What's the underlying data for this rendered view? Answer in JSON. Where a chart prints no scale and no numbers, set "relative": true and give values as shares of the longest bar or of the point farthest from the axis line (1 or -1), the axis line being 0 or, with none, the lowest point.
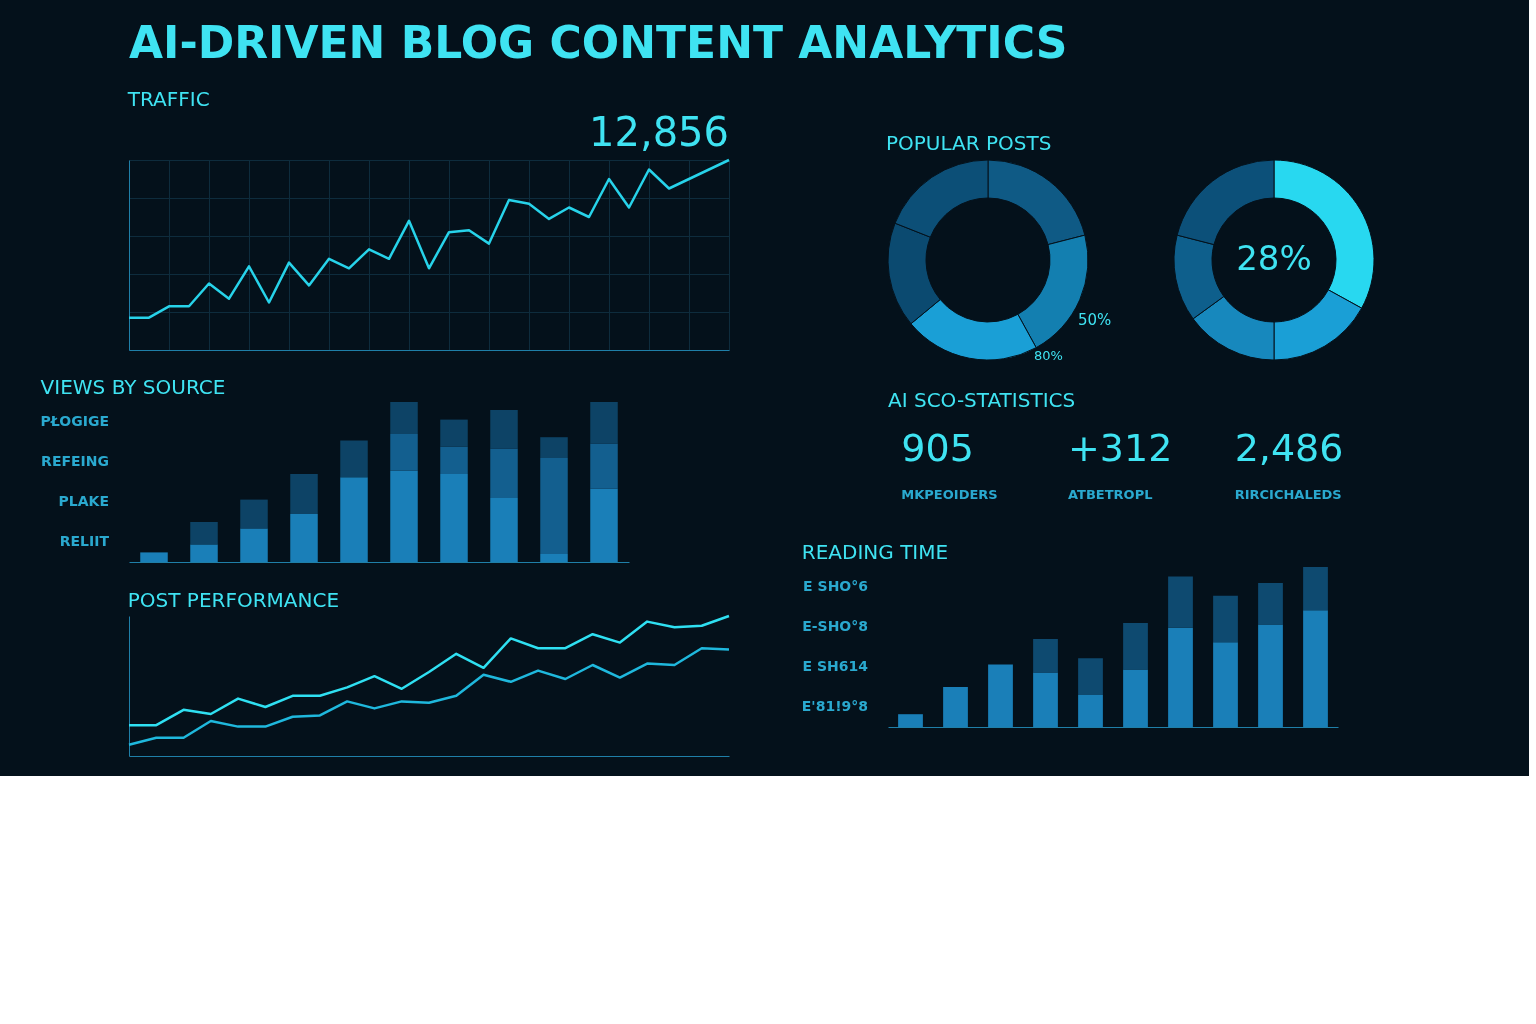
{
  "chart_data": [
    {
      "type": "other",
      "title": "AI-DRIVEN BLOG CONTENT ANALYTICS"
    },
    {
      "type": "line",
      "title": "TRAFFIC",
      "categories": [
        null,
        null,
        null,
        null,
        null,
        null,
        null,
        null,
        null,
        null,
        null,
        null,
        null,
        null,
        null,
        null,
        null,
        null,
        null,
        null,
        null,
        null,
        null,
        null,
        null,
        null,
        null,
        null,
        null,
        null,
        null
      ],
      "values": [
        0.17,
        0.17,
        0.23,
        0.23,
        0.35,
        0.27,
        0.44,
        0.25,
        0.46,
        0.34,
        0.48,
        0.43,
        0.53,
        0.48,
        0.68,
        0.43,
        0.62,
        0.63,
        0.56,
        0.79,
        0.77,
        0.69,
        0.75,
        0.7,
        0.9,
        0.75,
        0.95,
        0.85,
        0.9,
        0.95,
        1.0
      ],
      "color": "#27d3ea",
      "relative": true,
      "grid": true,
      "tick_labels": false,
      "annotations": [
        "12,856"
      ]
    },
    {
      "type": "donut",
      "title": "POPULAR POSTS",
      "categories": [
        null,
        null,
        null,
        null,
        null
      ],
      "values": [
        21,
        21,
        22,
        17,
        19
      ],
      "colors": [
        "#0f5a85",
        "#137fb0",
        "#1a9fd6",
        "#0b4a70",
        "#0c4f77"
      ],
      "annotations": [
        "50%",
        "80%"
      ]
    },
    {
      "type": "donut",
      "categories": [
        null,
        null,
        null,
        null,
        null
      ],
      "values": [
        33,
        17,
        15,
        14,
        21
      ],
      "colors": [
        "#28d8f0",
        "#1a9fd6",
        "#1788bd",
        "#0e5f8c",
        "#0c5079"
      ],
      "annotations": [
        "28%"
      ]
    },
    {
      "type": "bar",
      "title": "VIEWS BY SOURCE",
      "stacked": true,
      "relative": true,
      "tick_labels": false,
      "categories": [
        null,
        null,
        null,
        null,
        null,
        null,
        null,
        null,
        null,
        null
      ],
      "series": [
        {
          "color": "#1a7fb8",
          "values": [
            0.06,
            0.11,
            0.21,
            0.3,
            0.53,
            0.57,
            0.55,
            0.4,
            0.05,
            0.46
          ]
        },
        {
          "color": "#135f8f",
          "values": [
            null,
            null,
            null,
            null,
            null,
            0.23,
            0.17,
            0.31,
            0.6,
            0.28
          ]
        },
        {
          "color": "#0d4366",
          "values": [
            null,
            0.14,
            0.18,
            0.25,
            0.23,
            0.2,
            0.17,
            0.24,
            0.13,
            0.26
          ]
        }
      ],
      "annotations": [
        "PŁOGIGE",
        "REFEING",
        "PLAKE",
        "RELIIT"
      ]
    },
    {
      "type": "other",
      "title": "AI SCO-STATISTICS",
      "annotations": [
        "905",
        "MKPEOIDERS",
        "+312",
        "ATBETROPL",
        "2,486",
        "RIRCICHALEDS"
      ]
    },
    {
      "type": "line",
      "title": "POST PERFORMANCE",
      "relative": true,
      "tick_labels": false,
      "categories": [
        null,
        null,
        null,
        null,
        null,
        null,
        null,
        null,
        null,
        null,
        null,
        null,
        null,
        null,
        null,
        null,
        null,
        null,
        null,
        null,
        null,
        null,
        null
      ],
      "series": [
        {
          "color": "#2fe0f2",
          "values": [
            0.22,
            0.22,
            0.33,
            0.3,
            0.41,
            0.35,
            0.43,
            0.43,
            0.49,
            0.57,
            0.48,
            0.6,
            0.73,
            0.63,
            0.84,
            0.77,
            0.77,
            0.87,
            0.81,
            0.96,
            0.92,
            0.93,
            1.0
          ]
        },
        {
          "color": "#1fb8dd",
          "values": [
            0.08,
            0.13,
            0.13,
            0.25,
            0.21,
            0.21,
            0.28,
            0.29,
            0.39,
            0.34,
            0.39,
            0.38,
            0.43,
            0.58,
            0.53,
            0.61,
            0.55,
            0.65,
            0.56,
            0.66,
            0.65,
            0.77,
            0.76
          ]
        }
      ]
    },
    {
      "type": "bar",
      "title": "READING TIME",
      "stacked": true,
      "relative": true,
      "tick_labels": false,
      "categories": [
        null,
        null,
        null,
        null,
        null,
        null,
        null,
        null,
        null,
        null
      ],
      "series": [
        {
          "color": "#1a7fb8",
          "values": [
            0.08,
            0.25,
            0.39,
            0.34,
            0.2,
            0.36,
            0.62,
            0.53,
            0.64,
            0.73
          ]
        },
        {
          "color": "#0e4a70",
          "values": [
            null,
            null,
            null,
            0.21,
            0.23,
            0.29,
            0.32,
            0.29,
            0.26,
            0.27
          ]
        }
      ],
      "annotations": [
        "E SHO°6",
        "E-SHO°8",
        "E SH614",
        "E'81!9°8"
      ]
    }
  ]
}
